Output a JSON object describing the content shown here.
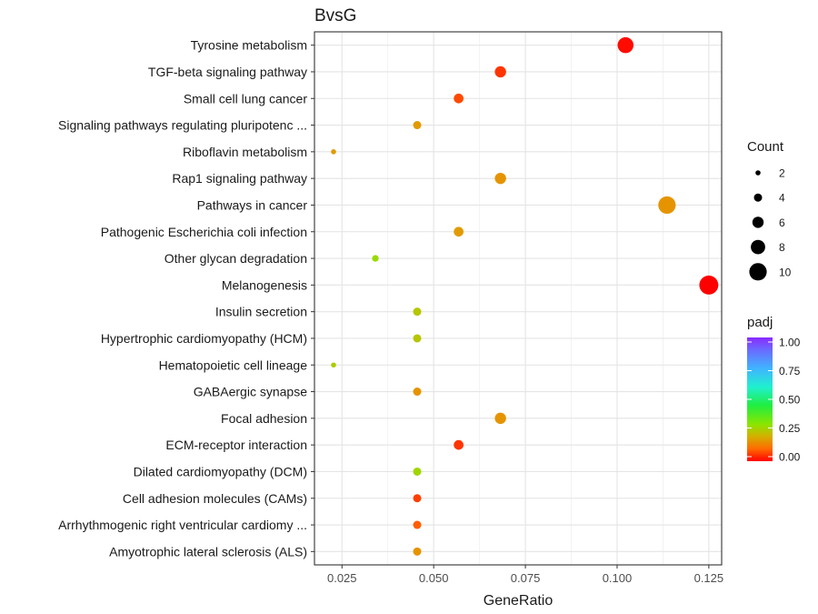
{
  "chart_data": {
    "type": "scatter",
    "title": "BvsG",
    "xlabel": "GeneRatio",
    "ylabel": "",
    "xlim": [
      0.0175,
      0.1285
    ],
    "x_ticks": [
      "0.025",
      "0.050",
      "0.075",
      "0.100",
      "0.125"
    ],
    "x_tick_values": [
      0.025,
      0.05,
      0.075,
      0.1,
      0.125
    ],
    "grid": true,
    "legend_placement": "right",
    "categories": [
      "Tyrosine metabolism",
      "TGF-beta signaling pathway",
      "Small cell lung cancer",
      "Signaling pathways regulating pluripotenc ...",
      "Riboflavin metabolism",
      "Rap1 signaling pathway",
      "Pathways in cancer",
      "Pathogenic Escherichia coli infection",
      "Other glycan degradation",
      "Melanogenesis",
      "Insulin secretion",
      "Hypertrophic cardiomyopathy (HCM)",
      "Hematopoietic cell lineage",
      "GABAergic synapse",
      "Focal adhesion",
      "ECM-receptor interaction",
      "Dilated cardiomyopathy (DCM)",
      "Cell adhesion molecules (CAMs)",
      "Arrhythmogenic right ventricular cardiomy ...",
      "Amyotrophic lateral sclerosis (ALS)"
    ],
    "points": [
      {
        "x": 0.1023,
        "count": 9,
        "padj": 0.01
      },
      {
        "x": 0.0682,
        "count": 6,
        "padj": 0.05
      },
      {
        "x": 0.0568,
        "count": 5,
        "padj": 0.07
      },
      {
        "x": 0.0455,
        "count": 4,
        "padj": 0.17
      },
      {
        "x": 0.0227,
        "count": 2,
        "padj": 0.17
      },
      {
        "x": 0.0682,
        "count": 6,
        "padj": 0.16
      },
      {
        "x": 0.1136,
        "count": 10,
        "padj": 0.16
      },
      {
        "x": 0.0568,
        "count": 5,
        "padj": 0.17
      },
      {
        "x": 0.0341,
        "count": 3,
        "padj": 0.28
      },
      {
        "x": 0.125,
        "count": 11,
        "padj": 0.0
      },
      {
        "x": 0.0455,
        "count": 4,
        "padj": 0.24
      },
      {
        "x": 0.0455,
        "count": 4,
        "padj": 0.24
      },
      {
        "x": 0.0227,
        "count": 2,
        "padj": 0.25
      },
      {
        "x": 0.0455,
        "count": 4,
        "padj": 0.16
      },
      {
        "x": 0.0682,
        "count": 6,
        "padj": 0.16
      },
      {
        "x": 0.0568,
        "count": 5,
        "padj": 0.05
      },
      {
        "x": 0.0455,
        "count": 4,
        "padj": 0.27
      },
      {
        "x": 0.0455,
        "count": 4,
        "padj": 0.06
      },
      {
        "x": 0.0455,
        "count": 4,
        "padj": 0.09
      },
      {
        "x": 0.0455,
        "count": 4,
        "padj": 0.16
      }
    ],
    "legend_count": {
      "title": "Count",
      "values": [
        2,
        4,
        6,
        8,
        10
      ],
      "labels": [
        "2",
        "4",
        "6",
        "8",
        "10"
      ]
    },
    "legend_padj": {
      "title": "padj",
      "range": [
        0,
        1
      ],
      "labels": [
        "1.00",
        "0.75",
        "0.50",
        "0.25",
        "0.00"
      ],
      "label_values": [
        1.0,
        0.75,
        0.5,
        0.25,
        0.0
      ]
    }
  }
}
